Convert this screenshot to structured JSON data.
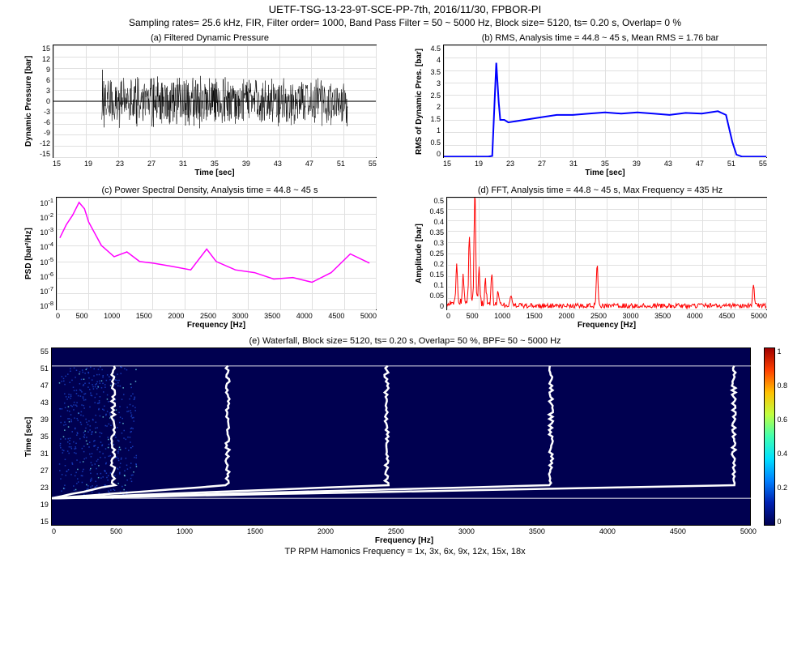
{
  "header": {
    "main": "UETF-TSG-13-23-9T-SCE-PP-7th, 2016/11/30, FPBOR-PI",
    "sub": "Sampling rates= 25.6 kHz, FIR, Filter order= 1000, Band Pass Filter =  50 ~  5000 Hz, Block size= 5120, ts= 0.20 s, Overlap= 0 %"
  },
  "panel_a": {
    "title": "(a)  Filtered Dynamic Pressure",
    "ylabel": "Dynamic Pressure [bar]",
    "xlabel": "Time [sec]",
    "xlim": [
      15,
      55
    ],
    "xtick_step": 4,
    "ylim": [
      -15,
      15
    ],
    "ytick_step": 3,
    "grid_color": "#e0e0e0",
    "line_color": "#000000",
    "signal": {
      "start": 21,
      "end": 51.5,
      "amp": 5.8,
      "spike_t": 21.2,
      "spike_amp": 12.5
    }
  },
  "panel_b": {
    "title": "(b)  RMS, Analysis time = 44.8 ~ 45  s, Mean RMS = 1.76  bar",
    "ylabel": "RMS of Dynamic Pres. [bar]",
    "xlabel": "Time [sec]",
    "xlim": [
      15,
      55
    ],
    "xtick_step": 4,
    "ylim": [
      0,
      4.5
    ],
    "ytick_step": 0.5,
    "grid_color": "#e0e0e0",
    "line_color": "#0000ff",
    "line_width": 2,
    "data_t": [
      15,
      20.5,
      21,
      21.5,
      21.8,
      22,
      22.5,
      23,
      25,
      27,
      29,
      31,
      33,
      35,
      37,
      39,
      41,
      43,
      45,
      47,
      49,
      50,
      50.8,
      51.3,
      52,
      55
    ],
    "data_y": [
      0.02,
      0.02,
      0.05,
      3.8,
      2.2,
      1.5,
      1.5,
      1.4,
      1.5,
      1.6,
      1.7,
      1.7,
      1.75,
      1.8,
      1.75,
      1.8,
      1.75,
      1.7,
      1.78,
      1.75,
      1.85,
      1.7,
      0.6,
      0.1,
      0.02,
      0.02
    ]
  },
  "panel_c": {
    "title": "(c)  Power Spectral Density, Analysis time = 44.8 ~ 45 s",
    "ylabel": "PSD [bar²/Hz]",
    "xlabel": "Frequency [Hz]",
    "xlim": [
      0,
      5000
    ],
    "xtick_step": 500,
    "ylog": true,
    "ylim_exp": [
      -8,
      -1
    ],
    "grid_color": "#e0e0e0",
    "line_color": "#ff00ff",
    "line_width": 1.5,
    "data_f": [
      50,
      150,
      250,
      350,
      435,
      500,
      700,
      900,
      1100,
      1300,
      1500,
      1800,
      2100,
      2350,
      2500,
      2800,
      3100,
      3400,
      3700,
      4000,
      4300,
      4600,
      4900
    ],
    "data_p": [
      0.0003,
      0.002,
      0.008,
      0.05,
      0.02,
      0.003,
      0.0001,
      2e-05,
      4e-05,
      1e-05,
      8e-06,
      5e-06,
      3e-06,
      6e-05,
      1e-05,
      3e-06,
      2e-06,
      8e-07,
      1e-06,
      5e-07,
      2e-06,
      3e-05,
      8e-06
    ]
  },
  "panel_d": {
    "title": "(d)  FFT, Analysis time = 44.8 ~ 45  s, Max Frequency = 435  Hz",
    "ylabel": "Amplitude [bar]",
    "xlabel": "Frequency [Hz]",
    "xlim": [
      0,
      5000
    ],
    "xtick_step": 500,
    "ylim": [
      0,
      0.5
    ],
    "ytick_step": 0.05,
    "grid_color": "#e0e0e0",
    "line_color": "#ff0000",
    "line_width": 1,
    "peaks": [
      {
        "f": 150,
        "a": 0.18
      },
      {
        "f": 250,
        "a": 0.12
      },
      {
        "f": 350,
        "a": 0.3
      },
      {
        "f": 435,
        "a": 0.5
      },
      {
        "f": 500,
        "a": 0.15
      },
      {
        "f": 600,
        "a": 0.1
      },
      {
        "f": 700,
        "a": 0.13
      },
      {
        "f": 800,
        "a": 0.06
      },
      {
        "f": 1000,
        "a": 0.04
      },
      {
        "f": 2350,
        "a": 0.19
      },
      {
        "f": 4800,
        "a": 0.09
      }
    ],
    "baseline": 0.015
  },
  "panel_e": {
    "title": "(e)  Waterfall, Block size=  5120, ts= 0.20 s, Overlap= 50 %, BPF=  50 ~  5000 Hz",
    "ylabel": "Time [sec]",
    "xlabel": "Frequency [Hz]",
    "xlim": [
      0,
      5000
    ],
    "xtick_step": 500,
    "ylim": [
      15,
      55
    ],
    "ytick_step": 4,
    "bg_color": "#000050",
    "noise_color": "#2050e0",
    "harmonic_color": "#ffffff",
    "harmonics_x": [
      435,
      1250,
      2380,
      3550,
      4850
    ],
    "signal_band": [
      21,
      51
    ],
    "colorbar": {
      "min": 0,
      "max": 1,
      "tick_step": 0.2,
      "colors": [
        "#000050",
        "#0020b0",
        "#0080ff",
        "#00e0ff",
        "#40ffb0",
        "#c0ff40",
        "#ffc000",
        "#ff4000",
        "#a00000"
      ]
    }
  },
  "footer": "TP RPM Hamonics Frequency = 1x, 3x, 6x, 9x, 12x, 15x, 18x"
}
